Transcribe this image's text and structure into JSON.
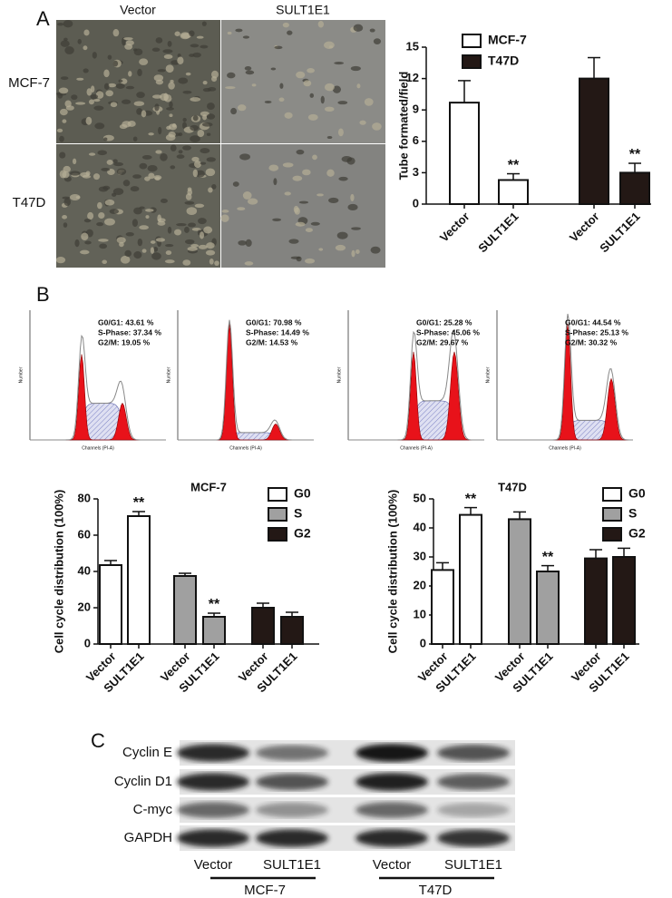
{
  "panel_labels": [
    "A",
    "B",
    "C"
  ],
  "micrographs": {
    "columns": [
      "Vector",
      "SULT1E1"
    ],
    "rows": [
      "MCF-7",
      "T47D"
    ]
  },
  "chart_data": [
    {
      "type": "bar",
      "ylabel": "Tube formated/field",
      "categories": [
        "Vector",
        "SULT1E1",
        "Vector",
        "SULT1E1"
      ],
      "series": [
        {
          "name": "MCF-7",
          "color": "#ffffff",
          "values": [
            9.7,
            2.3,
            null,
            null
          ],
          "errors": [
            2.1,
            0.6,
            null,
            null
          ],
          "stars": [
            null,
            "**",
            null,
            null
          ]
        },
        {
          "name": "T47D",
          "color": "#231815",
          "values": [
            null,
            null,
            12,
            3
          ],
          "errors": [
            null,
            null,
            2,
            0.9
          ],
          "stars": [
            null,
            null,
            null,
            "**"
          ]
        }
      ],
      "ylim": [
        0,
        15
      ],
      "yticks": [
        0,
        3,
        6,
        9,
        12,
        15
      ]
    },
    {
      "type": "bar",
      "title": "MCF-7",
      "ylabel": "Cell cycle distribution (100%)",
      "categories": [
        "Vector",
        "SULT1E1",
        "Vector",
        "SULT1E1",
        "Vector",
        "SULT1E1"
      ],
      "series": [
        {
          "name": "G0",
          "color": "#ffffff",
          "values": [
            43.5,
            70.5,
            null,
            null,
            null,
            null
          ],
          "errors": [
            2.5,
            2.5,
            null,
            null,
            null,
            null
          ],
          "stars": [
            null,
            "**",
            null,
            null,
            null,
            null
          ]
        },
        {
          "name": "S",
          "color": "#a0a0a0",
          "values": [
            null,
            null,
            37.5,
            15,
            null,
            null
          ],
          "errors": [
            null,
            null,
            1.5,
            2,
            null,
            null
          ],
          "stars": [
            null,
            null,
            null,
            "**",
            null,
            null
          ]
        },
        {
          "name": "G2",
          "color": "#231815",
          "values": [
            null,
            null,
            null,
            null,
            20,
            15
          ],
          "errors": [
            null,
            null,
            null,
            null,
            2.5,
            2.5
          ],
          "stars": [
            null,
            null,
            null,
            null,
            null,
            null
          ]
        }
      ],
      "ylim": [
        0,
        80
      ],
      "yticks": [
        0,
        20,
        40,
        60,
        80
      ]
    },
    {
      "type": "bar",
      "title": "T47D",
      "ylabel": "Cell cycle distribution (100%)",
      "categories": [
        "Vector",
        "SULT1E1",
        "Vector",
        "SULT1E1",
        "Vector",
        "SULT1E1"
      ],
      "series": [
        {
          "name": "G0",
          "color": "#ffffff",
          "values": [
            25.5,
            44.5,
            null,
            null,
            null,
            null
          ],
          "errors": [
            2.5,
            2.5,
            null,
            null,
            null,
            null
          ],
          "stars": [
            null,
            "**",
            null,
            null,
            null,
            null
          ]
        },
        {
          "name": "S",
          "color": "#a0a0a0",
          "values": [
            null,
            null,
            43,
            25,
            null,
            null
          ],
          "errors": [
            null,
            null,
            2.5,
            2,
            null,
            null
          ],
          "stars": [
            null,
            null,
            null,
            "**",
            null,
            null
          ]
        },
        {
          "name": "G2",
          "color": "#231815",
          "values": [
            null,
            null,
            null,
            null,
            29.5,
            30
          ],
          "errors": [
            null,
            null,
            null,
            null,
            3,
            3
          ],
          "stars": [
            null,
            null,
            null,
            null,
            null,
            null
          ]
        }
      ],
      "ylim": [
        0,
        50
      ],
      "yticks": [
        0,
        10,
        20,
        30,
        40,
        50
      ]
    }
  ],
  "flow_cytometry": {
    "xlabel": "Channels (PI-A)",
    "ylabel": "Number",
    "panels": [
      {
        "stats": [
          "G0/G1: 43.61 %",
          "S-Phase: 37.34 %",
          "G2/M: 19.05 %"
        ]
      },
      {
        "stats": [
          "G0/G1: 70.98 %",
          "S-Phase: 14.49 %",
          "G2/M: 14.53 %"
        ]
      },
      {
        "stats": [
          "G0/G1: 25.28 %",
          "S-Phase: 45.06 %",
          "G2/M: 29.67 %"
        ]
      },
      {
        "stats": [
          "G0/G1: 44.54 %",
          "S-Phase: 25.13 %",
          "G2/M: 30.32 %"
        ]
      }
    ]
  },
  "western_blot": {
    "proteins": [
      "Cyclin E",
      "Cyclin D1",
      "C-myc",
      "GAPDH"
    ],
    "lanes": [
      "Vector",
      "SULT1E1",
      "Vector",
      "SULT1E1"
    ],
    "groups": [
      "MCF-7",
      "T47D"
    ]
  }
}
